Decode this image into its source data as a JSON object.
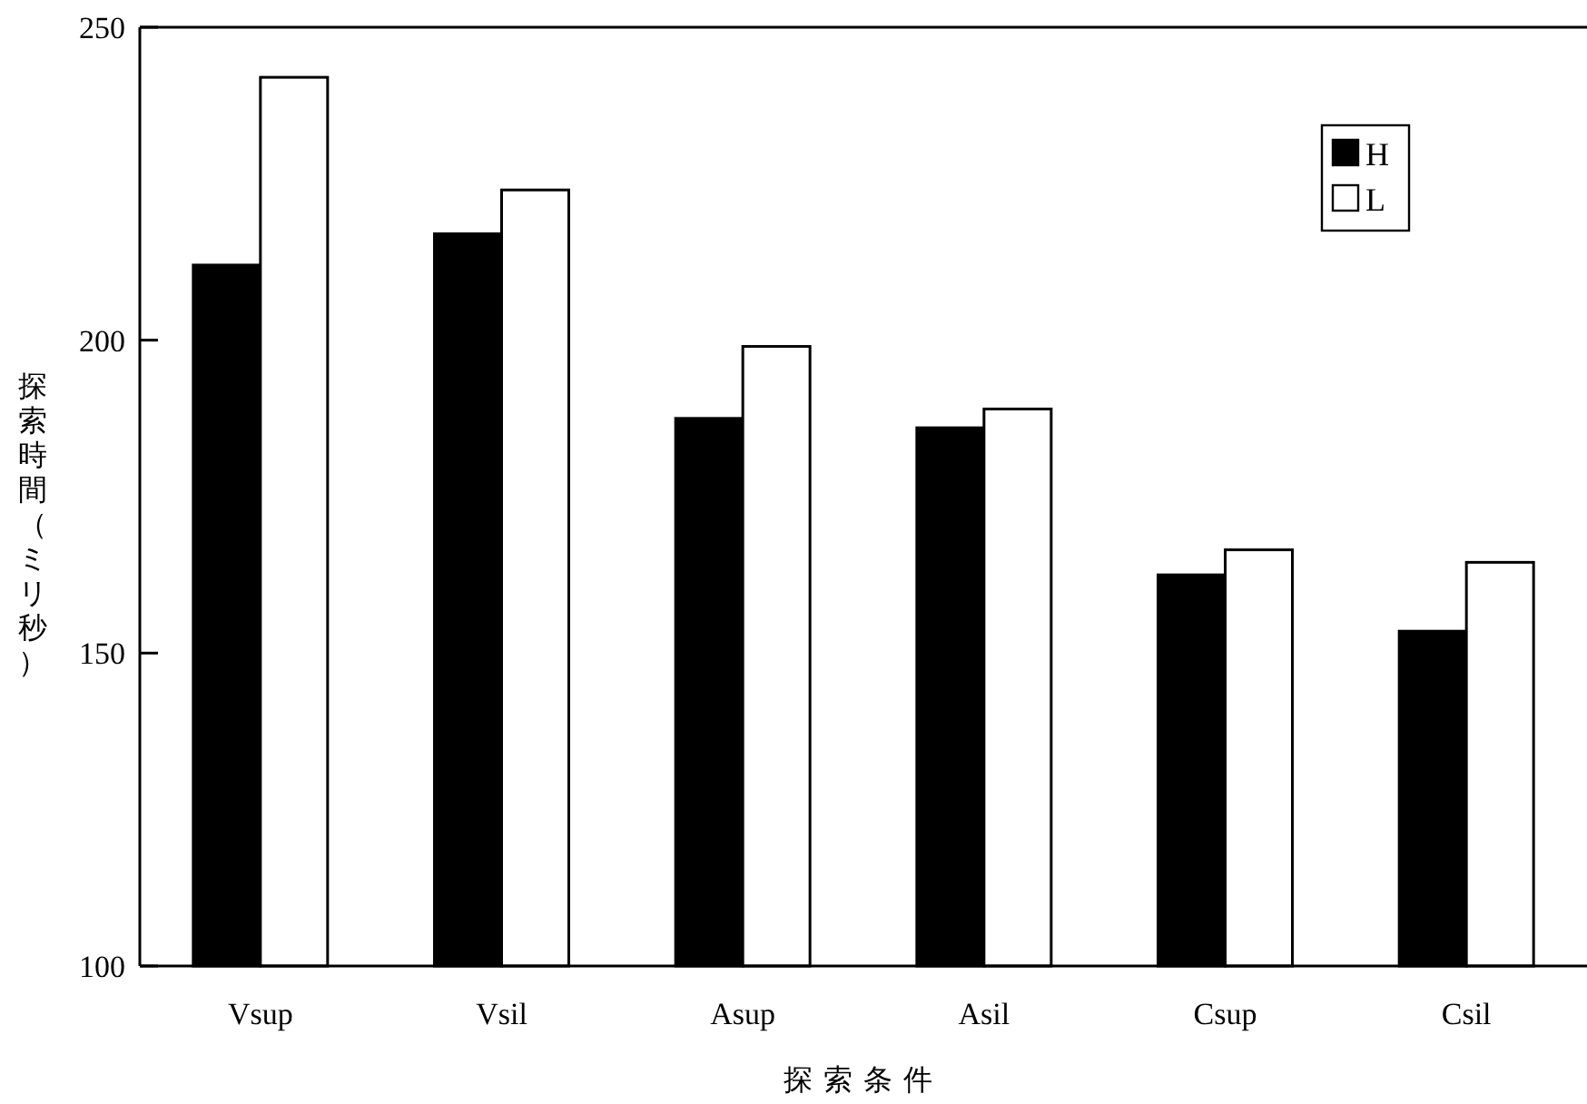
{
  "chart_data": {
    "type": "bar",
    "xlabel": "探索条件",
    "ylabel": "探索時間（ミリ秒）",
    "categories": [
      "Vsup",
      "Vsil",
      "Asup",
      "Asil",
      "Csup",
      "Csil"
    ],
    "series": [
      {
        "name": "H",
        "color": "#000000",
        "values": [
          212,
          217,
          187.5,
          186,
          162.5,
          153.5
        ]
      },
      {
        "name": "L",
        "color": "#ffffff",
        "values": [
          242,
          224,
          199,
          189,
          166.5,
          164.5
        ]
      }
    ],
    "ylim": [
      100,
      250
    ],
    "yticks": [
      100,
      150,
      200,
      250
    ],
    "legend": "top right",
    "grid": false
  }
}
